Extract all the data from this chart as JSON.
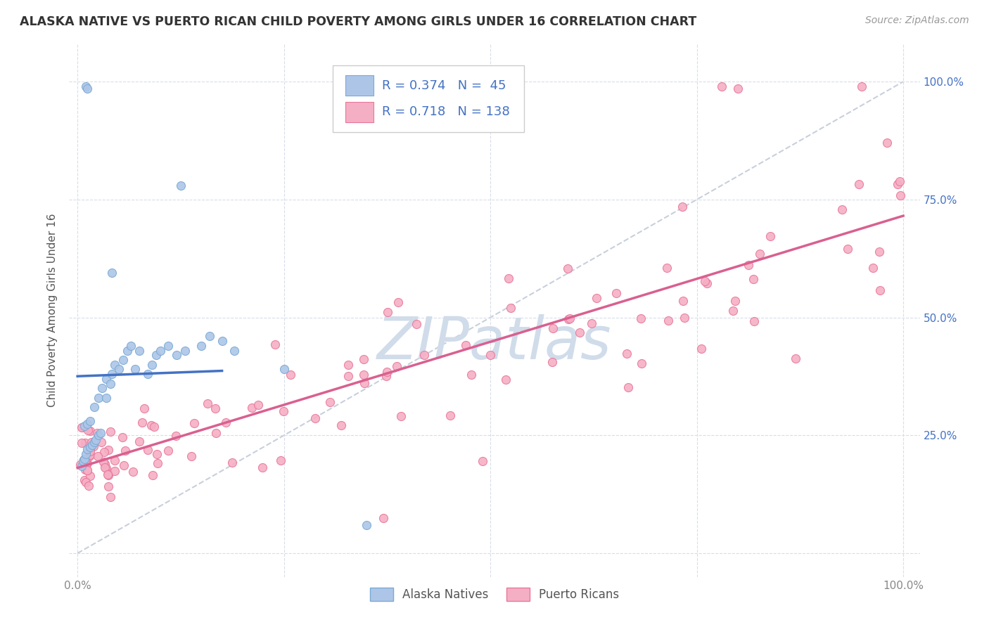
{
  "title": "ALASKA NATIVE VS PUERTO RICAN CHILD POVERTY AMONG GIRLS UNDER 16 CORRELATION CHART",
  "source": "Source: ZipAtlas.com",
  "ylabel": "Child Poverty Among Girls Under 16",
  "alaska_R": 0.374,
  "alaska_N": 45,
  "puerto_R": 0.718,
  "puerto_N": 138,
  "alaska_color": "#adc6e8",
  "alaska_edge": "#7aaad4",
  "puerto_color": "#f5afc5",
  "puerto_edge": "#e8789a",
  "alaska_line_color": "#4472c4",
  "puerto_line_color": "#d96090",
  "diagonal_color": "#c8d0dc",
  "watermark_color": "#d0dcea",
  "bg_color": "#ffffff",
  "grid_color": "#d8dde8",
  "title_color": "#333333",
  "source_color": "#999999",
  "ylabel_color": "#555555",
  "tick_color_right": "#4472c4",
  "tick_color_bottom": "#888888",
  "legend_edge_color": "#cccccc"
}
